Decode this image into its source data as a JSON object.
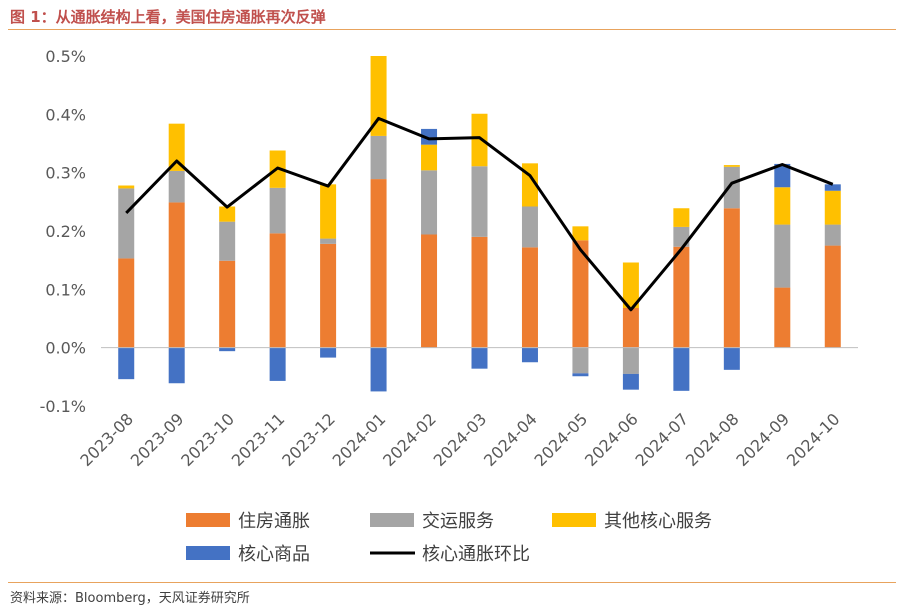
{
  "header": {
    "title": "图 1：从通胀结构上看，美国住房通胀再次反弹"
  },
  "footer": {
    "source": "资料来源：Bloomberg，天风证券研究所"
  },
  "chart_data": {
    "type": "bar",
    "stacked": true,
    "categories": [
      "2023-08",
      "2023-09",
      "2023-10",
      "2023-11",
      "2023-12",
      "2024-01",
      "2024-02",
      "2024-03",
      "2024-04",
      "2024-05",
      "2024-06",
      "2024-07",
      "2024-08",
      "2024-09",
      "2024-10"
    ],
    "yticks": [
      "0.5%",
      "0.4%",
      "0.3%",
      "0.2%",
      "0.1%",
      "0.0%",
      "-0.1%"
    ],
    "ylim": [
      -0.1,
      0.5
    ],
    "grid": false,
    "legend_position": "bottom",
    "series": [
      {
        "name": "住房通胀",
        "kind": "bar",
        "color": "#ed7d31",
        "values": [
          0.153,
          0.249,
          0.149,
          0.196,
          0.178,
          0.289,
          0.194,
          0.19,
          0.172,
          0.184,
          0.068,
          0.173,
          0.239,
          0.103,
          0.175
        ]
      },
      {
        "name": "交运服务",
        "kind": "bar",
        "color": "#a5a5a5",
        "values": [
          0.12,
          0.054,
          0.067,
          0.078,
          0.009,
          0.074,
          0.11,
          0.121,
          0.07,
          -0.044,
          -0.045,
          0.034,
          0.071,
          0.108,
          0.036
        ]
      },
      {
        "name": "其他核心服务",
        "kind": "bar",
        "color": "#ffc000",
        "values": [
          0.005,
          0.081,
          0.026,
          0.064,
          0.093,
          0.137,
          0.044,
          0.09,
          0.074,
          0.024,
          0.078,
          0.032,
          0.003,
          0.064,
          0.058
        ]
      },
      {
        "name": "核心商品",
        "kind": "bar",
        "color": "#4472c4",
        "values": [
          -0.054,
          -0.061,
          -0.006,
          -0.057,
          -0.017,
          -0.075,
          0.027,
          -0.036,
          -0.025,
          -0.005,
          -0.027,
          -0.074,
          -0.038,
          0.04,
          0.011
        ]
      },
      {
        "name": "核心通胀环比",
        "kind": "line",
        "color": "#000000",
        "values": [
          0.231,
          0.32,
          0.241,
          0.308,
          0.277,
          0.393,
          0.358,
          0.36,
          0.295,
          0.168,
          0.065,
          0.169,
          0.282,
          0.314,
          0.28
        ]
      }
    ]
  }
}
